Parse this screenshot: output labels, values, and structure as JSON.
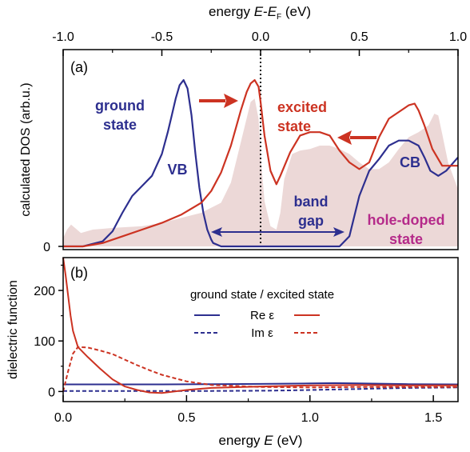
{
  "chart_data": [
    {
      "panel": "(a)",
      "type": "line",
      "xlabel_parts": [
        "energy ",
        "E",
        "-",
        "E",
        "F",
        " (eV)"
      ],
      "ylabel": "calculated DOS (arb.u.)",
      "xlim": [
        -1.0,
        1.0
      ],
      "x_ticks": [
        "-1.0",
        "-0.5",
        "0.0",
        "0.5",
        "1.0"
      ],
      "y_ticks": [
        "0"
      ],
      "axis_position": "top",
      "series": [
        {
          "name": "ground state",
          "color": "#2d2f8f",
          "x": [
            -1.0,
            -0.9,
            -0.8,
            -0.75,
            -0.7,
            -0.65,
            -0.6,
            -0.55,
            -0.5,
            -0.47,
            -0.45,
            -0.43,
            -0.41,
            -0.39,
            -0.37,
            -0.35,
            -0.33,
            -0.31,
            -0.29,
            -0.27,
            -0.25,
            -0.24,
            -0.22,
            -0.2,
            -0.1,
            0.0,
            0.1,
            0.2,
            0.3,
            0.4,
            0.45,
            0.5,
            0.55,
            0.6,
            0.65,
            0.7,
            0.75,
            0.8,
            0.83,
            0.86,
            0.9,
            0.94,
            1.0
          ],
          "y": [
            0.0,
            0.0,
            0.03,
            0.09,
            0.2,
            0.3,
            0.36,
            0.42,
            0.55,
            0.68,
            0.78,
            0.88,
            0.96,
            0.99,
            0.94,
            0.78,
            0.55,
            0.35,
            0.2,
            0.1,
            0.04,
            0.02,
            0.01,
            0.0,
            0.0,
            0.0,
            0.0,
            0.0,
            0.0,
            0.0,
            0.06,
            0.3,
            0.45,
            0.52,
            0.6,
            0.63,
            0.63,
            0.6,
            0.53,
            0.45,
            0.42,
            0.45,
            0.53
          ]
        },
        {
          "name": "excited state",
          "color": "#cc3322",
          "x": [
            -1.0,
            -0.9,
            -0.8,
            -0.7,
            -0.6,
            -0.5,
            -0.4,
            -0.3,
            -0.25,
            -0.2,
            -0.15,
            -0.1,
            -0.07,
            -0.05,
            -0.03,
            -0.01,
            0.0,
            0.02,
            0.05,
            0.08,
            0.1,
            0.15,
            0.2,
            0.25,
            0.3,
            0.35,
            0.4,
            0.45,
            0.5,
            0.55,
            0.6,
            0.65,
            0.7,
            0.75,
            0.78,
            0.8,
            0.83,
            0.87,
            0.92,
            1.0
          ],
          "y": [
            0.0,
            0.0,
            0.02,
            0.06,
            0.1,
            0.14,
            0.19,
            0.26,
            0.33,
            0.44,
            0.6,
            0.81,
            0.92,
            0.97,
            0.99,
            0.95,
            0.86,
            0.66,
            0.45,
            0.37,
            0.42,
            0.56,
            0.66,
            0.68,
            0.68,
            0.66,
            0.57,
            0.5,
            0.46,
            0.5,
            0.65,
            0.76,
            0.8,
            0.84,
            0.85,
            0.81,
            0.72,
            0.58,
            0.48,
            0.48
          ]
        },
        {
          "name": "hole-doped state",
          "type": "area",
          "color": "#ecd8d7",
          "x": [
            -1.0,
            -0.98,
            -0.96,
            -0.94,
            -0.91,
            -0.85,
            -0.75,
            -0.6,
            -0.5,
            -0.4,
            -0.3,
            -0.2,
            -0.15,
            -0.1,
            -0.05,
            -0.03,
            -0.01,
            0.0,
            0.02,
            0.05,
            0.08,
            0.1,
            0.12,
            0.16,
            0.2,
            0.25,
            0.3,
            0.35,
            0.4,
            0.45,
            0.5,
            0.55,
            0.6,
            0.65,
            0.7,
            0.75,
            0.8,
            0.85,
            0.88,
            0.9,
            0.92,
            0.95,
            1.0
          ],
          "y": [
            0.05,
            0.1,
            0.13,
            0.11,
            0.08,
            0.1,
            0.11,
            0.12,
            0.14,
            0.17,
            0.2,
            0.26,
            0.38,
            0.62,
            0.86,
            0.88,
            0.76,
            0.55,
            0.27,
            0.12,
            0.1,
            0.2,
            0.4,
            0.55,
            0.57,
            0.58,
            0.6,
            0.6,
            0.58,
            0.55,
            0.5,
            0.46,
            0.46,
            0.5,
            0.58,
            0.65,
            0.68,
            0.72,
            0.79,
            0.78,
            0.67,
            0.5,
            0.34
          ]
        }
      ],
      "annotations": [
        {
          "text": "(a)"
        },
        {
          "text": "ground"
        },
        {
          "text": "state"
        },
        {
          "text": "VB"
        },
        {
          "text": "excited"
        },
        {
          "text": "state"
        },
        {
          "text": "band"
        },
        {
          "text": "gap"
        },
        {
          "text": "CB"
        },
        {
          "text": "hole-doped"
        },
        {
          "text": "state"
        }
      ]
    },
    {
      "panel": "(b)",
      "type": "line",
      "xlabel_parts": [
        "energy ",
        "E",
        " (eV)"
      ],
      "ylabel": "dielectric function",
      "xlim": [
        0.0,
        1.6
      ],
      "ylim": [
        -20,
        265
      ],
      "x_ticks": [
        "0.0",
        "0.5",
        "1.0",
        "1.5"
      ],
      "y_ticks": [
        "0",
        "100",
        "200"
      ],
      "legend": {
        "position": "center",
        "header": "ground state / excited state",
        "rows": [
          "Re ε",
          "Im ε"
        ]
      },
      "series": [
        {
          "name": "Re ε ground state",
          "color": "#2d2f8f",
          "dash": "solid",
          "x": [
            0.0,
            0.2,
            0.4,
            0.6,
            0.8,
            1.0,
            1.1,
            1.2,
            1.4,
            1.6
          ],
          "y": [
            14,
            14,
            14,
            14.5,
            15,
            16,
            16.5,
            16,
            14.5,
            14
          ]
        },
        {
          "name": "Im ε ground state",
          "color": "#2d2f8f",
          "dash": "dashed",
          "x": [
            0.0,
            0.2,
            0.4,
            0.6,
            0.8,
            0.9,
            1.0,
            1.2,
            1.4,
            1.6
          ],
          "y": [
            1,
            1,
            1,
            1,
            1.5,
            2,
            3,
            5,
            7,
            8
          ]
        },
        {
          "name": "Re ε excited state",
          "color": "#cc3322",
          "dash": "solid",
          "x": [
            0.0,
            0.01,
            0.02,
            0.03,
            0.04,
            0.06,
            0.1,
            0.15,
            0.2,
            0.25,
            0.3,
            0.35,
            0.4,
            0.5,
            0.6,
            0.8,
            1.0,
            1.2,
            1.4,
            1.6
          ],
          "y": [
            265,
            230,
            190,
            150,
            120,
            88,
            68,
            45,
            24,
            10,
            3,
            -2,
            -3,
            3,
            7,
            10,
            12,
            13,
            12,
            12
          ]
        },
        {
          "name": "Im ε excited state",
          "color": "#cc3322",
          "dash": "dashed",
          "x": [
            0.0,
            0.02,
            0.04,
            0.06,
            0.1,
            0.15,
            0.2,
            0.25,
            0.3,
            0.35,
            0.4,
            0.5,
            0.6,
            0.8,
            1.0,
            1.2,
            1.4,
            1.6
          ],
          "y": [
            0,
            40,
            75,
            88,
            87,
            81,
            74,
            63,
            52,
            42,
            33,
            20,
            13,
            9,
            8,
            9,
            9,
            9
          ]
        }
      ]
    }
  ]
}
